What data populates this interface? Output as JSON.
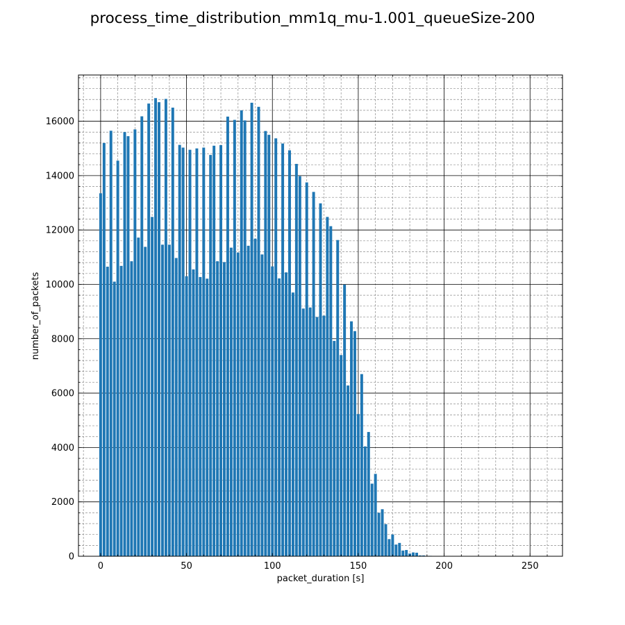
{
  "chart_data": {
    "type": "bar",
    "title": "process_time_distribution_mm1q_mu-1.001_queueSize-200",
    "xlabel": "packet_duration [s]",
    "ylabel": "number_of_packets",
    "xlim": [
      -12.9,
      268.9
    ],
    "ylim": [
      0,
      17700
    ],
    "xticks": [
      0,
      50,
      100,
      150,
      200,
      250
    ],
    "yticks": [
      0,
      2000,
      4000,
      6000,
      8000,
      10000,
      12000,
      14000,
      16000
    ],
    "grid": true,
    "bar_color": "#1f77b4",
    "x": [
      0,
      2,
      4,
      6,
      8,
      10,
      12,
      14,
      16,
      18,
      20,
      22,
      24,
      26,
      28,
      30,
      32,
      34,
      36,
      38,
      40,
      42,
      44,
      46,
      48,
      50,
      52,
      54,
      56,
      58,
      60,
      62,
      64,
      66,
      68,
      70,
      72,
      74,
      76,
      78,
      80,
      82,
      84,
      86,
      88,
      90,
      92,
      94,
      96,
      98,
      100,
      102,
      104,
      106,
      108,
      110,
      112,
      114,
      116,
      118,
      120,
      122,
      124,
      126,
      128,
      130,
      132,
      134,
      136,
      138,
      140,
      142,
      144,
      146,
      148,
      150,
      152,
      154,
      156,
      158,
      160,
      162,
      164,
      166,
      168,
      170,
      172,
      174,
      176,
      178,
      180,
      182,
      184,
      186,
      188,
      190,
      192,
      194,
      196,
      198,
      200,
      202,
      204,
      206,
      208,
      210,
      212,
      214,
      216,
      218,
      220,
      222,
      224,
      226,
      228,
      230,
      232,
      234,
      236,
      238,
      240,
      242,
      244,
      246,
      248,
      250,
      252,
      254,
      256
    ],
    "values": [
      13350,
      15200,
      10650,
      15650,
      10100,
      14550,
      10680,
      15600,
      15450,
      10850,
      15700,
      11720,
      16180,
      11380,
      16650,
      12480,
      16850,
      16700,
      11460,
      16820,
      11460,
      16500,
      10970,
      15130,
      15030,
      10300,
      14950,
      10550,
      15000,
      10270,
      15030,
      10210,
      14760,
      15100,
      10850,
      15120,
      10820,
      16170,
      11350,
      16050,
      11170,
      16400,
      16030,
      11420,
      16680,
      11680,
      16530,
      11100,
      15640,
      15500,
      10660,
      15370,
      10220,
      15180,
      10440,
      14930,
      9700,
      14430,
      13980,
      9110,
      13750,
      9150,
      13400,
      8800,
      12980,
      8850,
      12480,
      12140,
      7920,
      11630,
      7400,
      9990,
      6280,
      8640,
      8280,
      5230,
      6700,
      4040,
      4570,
      2670,
      3030,
      1600,
      1730,
      1180,
      630,
      800,
      430,
      490,
      210,
      230,
      100,
      140,
      130,
      30,
      30,
      15,
      15,
      10,
      10,
      5,
      5,
      5,
      5,
      3,
      3,
      2,
      2,
      2,
      2,
      1,
      1,
      1,
      1,
      1,
      1,
      1,
      1,
      1,
      1,
      1,
      1,
      1,
      1,
      1,
      1,
      1,
      1,
      1,
      1
    ]
  }
}
